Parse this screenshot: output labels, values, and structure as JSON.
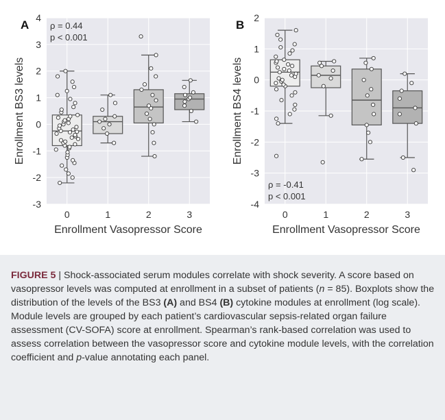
{
  "chart_data": [
    {
      "type": "box",
      "panel_letter": "A",
      "xlabel": "Enrollment Vasopressor Score",
      "ylabel": "Enrollment BS3 levels",
      "categories": [
        "0",
        "1",
        "2",
        "3"
      ],
      "ylim": [
        -3,
        4
      ],
      "yticks": [
        "-3",
        "-2",
        "-1",
        "0",
        "1",
        "2",
        "3",
        "4"
      ],
      "grid": true,
      "annotation": [
        "ρ = 0.44",
        "p < 0.001"
      ],
      "boxes": [
        {
          "category": "0",
          "whisker_low": -2.2,
          "q1": -0.8,
          "median": -0.25,
          "q3": 0.35,
          "whisker_high": 2.0
        },
        {
          "category": "1",
          "whisker_low": -0.7,
          "q1": -0.35,
          "median": 0.1,
          "q3": 0.3,
          "whisker_high": 1.1
        },
        {
          "category": "2",
          "whisker_low": -1.2,
          "q1": 0.05,
          "median": 0.65,
          "q3": 1.3,
          "whisker_high": 2.6
        },
        {
          "category": "3",
          "whisker_low": 0.1,
          "q1": 0.55,
          "median": 0.95,
          "q3": 1.15,
          "whisker_high": 1.65
        }
      ],
      "points": [
        {
          "category": "0",
          "values": [
            -2.2,
            -2.0,
            -1.85,
            -1.7,
            -1.55,
            -1.45,
            -1.35,
            -1.25,
            -1.15,
            -1.05,
            -0.95,
            -0.9,
            -0.85,
            -0.8,
            -0.75,
            -0.7,
            -0.65,
            -0.6,
            -0.55,
            -0.5,
            -0.45,
            -0.4,
            -0.35,
            -0.3,
            -0.28,
            -0.25,
            -0.2,
            -0.15,
            -0.1,
            -0.05,
            0.0,
            0.05,
            0.1,
            0.15,
            0.2,
            0.25,
            0.3,
            0.35,
            0.45,
            0.55,
            0.65,
            0.8,
            0.95,
            1.1,
            1.25,
            1.4,
            1.6,
            1.8,
            2.0
          ]
        },
        {
          "category": "1",
          "values": [
            -0.7,
            -0.35,
            -0.15,
            0.0,
            0.1,
            0.2,
            0.3,
            0.55,
            0.8,
            1.1
          ]
        },
        {
          "category": "2",
          "values": [
            -1.2,
            -0.7,
            -0.3,
            0.0,
            0.2,
            0.4,
            0.6,
            0.7,
            0.9,
            1.1,
            1.3,
            1.5,
            1.8,
            2.1,
            2.6,
            3.3
          ]
        },
        {
          "category": "3",
          "values": [
            0.1,
            0.5,
            0.7,
            0.85,
            0.95,
            1.0,
            1.1,
            1.2,
            1.4,
            1.65
          ]
        }
      ]
    },
    {
      "type": "box",
      "panel_letter": "B",
      "xlabel": "Enrollment Vasopressor Score",
      "ylabel": "Enrollment BS4 levels",
      "categories": [
        "0",
        "1",
        "2",
        "3"
      ],
      "ylim": [
        -4,
        2
      ],
      "yticks": [
        "-4",
        "-3",
        "-2",
        "-1",
        "0",
        "1",
        "2"
      ],
      "grid": true,
      "annotation": [
        "ρ = -0.41",
        "p < 0.001"
      ],
      "boxes": [
        {
          "category": "0",
          "whisker_low": -1.4,
          "q1": -0.2,
          "median": 0.25,
          "q3": 0.65,
          "whisker_high": 1.6
        },
        {
          "category": "1",
          "whisker_low": -1.15,
          "q1": -0.25,
          "median": 0.15,
          "q3": 0.45,
          "whisker_high": 0.6
        },
        {
          "category": "2",
          "whisker_low": -2.55,
          "q1": -1.45,
          "median": -0.65,
          "q3": 0.35,
          "whisker_high": 0.7
        },
        {
          "category": "3",
          "whisker_low": -2.5,
          "q1": -1.4,
          "median": -0.9,
          "q3": -0.35,
          "whisker_high": 0.2
        }
      ],
      "points": [
        {
          "category": "0",
          "values": [
            -2.45,
            -1.4,
            -1.25,
            -1.1,
            -0.95,
            -0.8,
            -0.65,
            -0.5,
            -0.4,
            -0.3,
            -0.2,
            -0.15,
            -0.1,
            -0.05,
            0.0,
            0.05,
            0.1,
            0.15,
            0.2,
            0.25,
            0.3,
            0.35,
            0.4,
            0.45,
            0.5,
            0.55,
            0.6,
            0.65,
            0.75,
            0.85,
            0.95,
            1.05,
            1.15,
            1.3,
            1.45,
            1.6
          ]
        },
        {
          "category": "1",
          "values": [
            -2.65,
            -1.15,
            -0.2,
            0.05,
            0.15,
            0.3,
            0.45,
            0.55,
            0.6
          ]
        },
        {
          "category": "2",
          "values": [
            -2.55,
            -2.0,
            -1.7,
            -1.45,
            -1.1,
            -0.8,
            -0.5,
            -0.3,
            0.0,
            0.35,
            0.55,
            0.7
          ]
        },
        {
          "category": "3",
          "values": [
            -2.9,
            -2.5,
            -1.4,
            -1.1,
            -0.9,
            -0.6,
            -0.35,
            -0.1,
            0.2
          ]
        }
      ]
    }
  ],
  "caption": {
    "figure_label": "FIGURE 5",
    "segments": [
      {
        "text": " | Shock-associated serum modules correlate with shock severity. A score based on vasopressor levels was computed at enrollment in a subset of patients (",
        "style": "normal"
      },
      {
        "text": "n",
        "style": "italic"
      },
      {
        "text": " = 85). Boxplots show the distribution of the levels of the BS3 ",
        "style": "normal"
      },
      {
        "text": "(A)",
        "style": "bold"
      },
      {
        "text": " and BS4 ",
        "style": "normal"
      },
      {
        "text": "(B)",
        "style": "bold"
      },
      {
        "text": " cytokine modules at enrollment (log scale). Module levels are grouped by each patient’s cardiovascular sepsis-related organ failure assessment (CV-SOFA) score at enrollment. Spearman’s rank-based correlation was used to assess correlation between the vasopressor score and cytokine module levels, with the correlation coefficient and ",
        "style": "normal"
      },
      {
        "text": "p",
        "style": "italic"
      },
      {
        "text": "-value annotating each panel.",
        "style": "normal"
      }
    ]
  },
  "colors": {
    "plot_bg": "#e8e8ee",
    "grid": "#ffffff",
    "box_fills": [
      "#ededed",
      "#dadada",
      "#c4c4c4",
      "#b2b2b2"
    ],
    "box_edge": "#555555",
    "point_fill": "#ffffff",
    "point_edge": "#444444",
    "caption_bg": "#eceef1",
    "caption_label": "#7a2a3c"
  }
}
